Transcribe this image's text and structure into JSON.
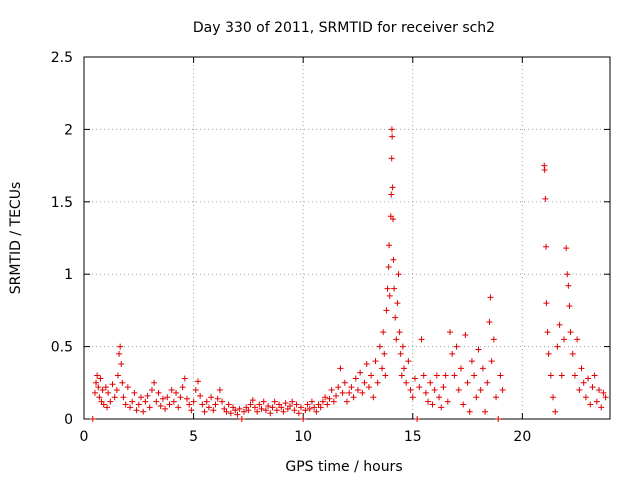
{
  "chart_data": {
    "type": "scatter",
    "title": "Day 330 of 2011, SRMTID for receiver sch2",
    "xlabel": "GPS time / hours",
    "ylabel": "SRMTID / TECUs",
    "xlim": [
      0,
      24
    ],
    "ylim": [
      0,
      2.5
    ],
    "xticks": [
      0,
      5,
      10,
      15,
      20
    ],
    "xtick_labels": [
      "0",
      "5",
      "10",
      "15",
      "20"
    ],
    "yticks": [
      0,
      0.5,
      1,
      1.5,
      2,
      2.5
    ],
    "ytick_labels": [
      "0",
      "0.5",
      "1",
      "1.5",
      "2",
      "2.5"
    ],
    "grid": true,
    "marker": "plus",
    "color": "#e00000",
    "series": [
      {
        "name": "sch2",
        "points": [
          [
            0.4,
            0.0
          ],
          [
            0.5,
            0.18
          ],
          [
            0.55,
            0.25
          ],
          [
            0.6,
            0.3
          ],
          [
            0.65,
            0.22
          ],
          [
            0.7,
            0.15
          ],
          [
            0.75,
            0.28
          ],
          [
            0.8,
            0.12
          ],
          [
            0.85,
            0.2
          ],
          [
            0.9,
            0.1
          ],
          [
            1.0,
            0.22
          ],
          [
            1.05,
            0.08
          ],
          [
            1.1,
            0.18
          ],
          [
            1.2,
            0.12
          ],
          [
            1.3,
            0.24
          ],
          [
            1.4,
            0.15
          ],
          [
            1.5,
            0.2
          ],
          [
            1.55,
            0.3
          ],
          [
            1.6,
            0.45
          ],
          [
            1.65,
            0.5
          ],
          [
            1.7,
            0.38
          ],
          [
            1.75,
            0.25
          ],
          [
            1.8,
            0.15
          ],
          [
            1.9,
            0.1
          ],
          [
            2.0,
            0.22
          ],
          [
            2.1,
            0.08
          ],
          [
            2.2,
            0.12
          ],
          [
            2.3,
            0.18
          ],
          [
            2.4,
            0.06
          ],
          [
            2.5,
            0.1
          ],
          [
            2.6,
            0.15
          ],
          [
            2.7,
            0.05
          ],
          [
            2.8,
            0.12
          ],
          [
            2.9,
            0.16
          ],
          [
            3.0,
            0.08
          ],
          [
            3.1,
            0.2
          ],
          [
            3.2,
            0.25
          ],
          [
            3.3,
            0.12
          ],
          [
            3.4,
            0.18
          ],
          [
            3.5,
            0.09
          ],
          [
            3.6,
            0.14
          ],
          [
            3.7,
            0.07
          ],
          [
            3.8,
            0.15
          ],
          [
            3.9,
            0.1
          ],
          [
            4.0,
            0.2
          ],
          [
            4.1,
            0.12
          ],
          [
            4.2,
            0.18
          ],
          [
            4.3,
            0.08
          ],
          [
            4.4,
            0.15
          ],
          [
            4.5,
            0.22
          ],
          [
            4.6,
            0.28
          ],
          [
            4.7,
            0.14
          ],
          [
            4.8,
            0.1
          ],
          [
            4.9,
            0.06
          ],
          [
            5.0,
            0.12
          ],
          [
            5.1,
            0.2
          ],
          [
            5.2,
            0.26
          ],
          [
            5.3,
            0.16
          ],
          [
            5.4,
            0.1
          ],
          [
            5.5,
            0.05
          ],
          [
            5.6,
            0.12
          ],
          [
            5.7,
            0.08
          ],
          [
            5.8,
            0.15
          ],
          [
            5.9,
            0.06
          ],
          [
            6.0,
            0.1
          ],
          [
            6.1,
            0.14
          ],
          [
            6.2,
            0.2
          ],
          [
            6.3,
            0.12
          ],
          [
            6.4,
            0.07
          ],
          [
            6.5,
            0.05
          ],
          [
            6.6,
            0.1
          ],
          [
            6.7,
            0.04
          ],
          [
            6.8,
            0.08
          ],
          [
            6.9,
            0.06
          ],
          [
            7.0,
            0.03
          ],
          [
            7.1,
            0.07
          ],
          [
            7.2,
            0.0
          ],
          [
            7.3,
            0.05
          ],
          [
            7.4,
            0.08
          ],
          [
            7.5,
            0.06
          ],
          [
            7.6,
            0.1
          ],
          [
            7.7,
            0.13
          ],
          [
            7.8,
            0.08
          ],
          [
            7.9,
            0.05
          ],
          [
            8.0,
            0.1
          ],
          [
            8.1,
            0.07
          ],
          [
            8.2,
            0.12
          ],
          [
            8.3,
            0.06
          ],
          [
            8.4,
            0.09
          ],
          [
            8.5,
            0.04
          ],
          [
            8.6,
            0.08
          ],
          [
            8.7,
            0.12
          ],
          [
            8.8,
            0.06
          ],
          [
            8.9,
            0.1
          ],
          [
            9.0,
            0.08
          ],
          [
            9.1,
            0.05
          ],
          [
            9.2,
            0.11
          ],
          [
            9.3,
            0.07
          ],
          [
            9.4,
            0.09
          ],
          [
            9.5,
            0.12
          ],
          [
            9.6,
            0.06
          ],
          [
            9.7,
            0.1
          ],
          [
            9.8,
            0.04
          ],
          [
            9.9,
            0.08
          ],
          [
            10.0,
            0.0
          ],
          [
            10.1,
            0.06
          ],
          [
            10.2,
            0.1
          ],
          [
            10.3,
            0.07
          ],
          [
            10.4,
            0.12
          ],
          [
            10.5,
            0.08
          ],
          [
            10.6,
            0.05
          ],
          [
            10.7,
            0.1
          ],
          [
            10.8,
            0.08
          ],
          [
            10.9,
            0.12
          ],
          [
            11.0,
            0.15
          ],
          [
            11.1,
            0.1
          ],
          [
            11.2,
            0.14
          ],
          [
            11.3,
            0.2
          ],
          [
            11.4,
            0.12
          ],
          [
            11.5,
            0.16
          ],
          [
            11.6,
            0.22
          ],
          [
            11.7,
            0.35
          ],
          [
            11.8,
            0.18
          ],
          [
            11.9,
            0.25
          ],
          [
            12.0,
            0.12
          ],
          [
            12.1,
            0.18
          ],
          [
            12.2,
            0.22
          ],
          [
            12.3,
            0.15
          ],
          [
            12.4,
            0.28
          ],
          [
            12.5,
            0.2
          ],
          [
            12.6,
            0.32
          ],
          [
            12.7,
            0.18
          ],
          [
            12.8,
            0.25
          ],
          [
            12.9,
            0.38
          ],
          [
            13.0,
            0.22
          ],
          [
            13.1,
            0.3
          ],
          [
            13.2,
            0.15
          ],
          [
            13.3,
            0.4
          ],
          [
            13.4,
            0.25
          ],
          [
            13.5,
            0.5
          ],
          [
            13.6,
            0.35
          ],
          [
            13.65,
            0.6
          ],
          [
            13.7,
            0.45
          ],
          [
            13.75,
            0.3
          ],
          [
            13.8,
            0.75
          ],
          [
            13.85,
            0.9
          ],
          [
            13.9,
            1.05
          ],
          [
            13.92,
            1.2
          ],
          [
            13.95,
            0.85
          ],
          [
            14.0,
            1.4
          ],
          [
            14.02,
            1.55
          ],
          [
            14.04,
            1.8
          ],
          [
            14.05,
            2.0
          ],
          [
            14.06,
            1.95
          ],
          [
            14.08,
            1.6
          ],
          [
            14.1,
            1.38
          ],
          [
            14.12,
            1.1
          ],
          [
            14.15,
            0.9
          ],
          [
            14.2,
            0.7
          ],
          [
            14.25,
            0.55
          ],
          [
            14.3,
            0.8
          ],
          [
            14.35,
            1.0
          ],
          [
            14.4,
            0.6
          ],
          [
            14.45,
            0.45
          ],
          [
            14.5,
            0.3
          ],
          [
            14.55,
            0.5
          ],
          [
            14.6,
            0.35
          ],
          [
            14.7,
            0.25
          ],
          [
            14.8,
            0.4
          ],
          [
            14.9,
            0.2
          ],
          [
            15.0,
            0.15
          ],
          [
            15.1,
            0.28
          ],
          [
            15.2,
            0.0
          ],
          [
            15.3,
            0.22
          ],
          [
            15.4,
            0.55
          ],
          [
            15.5,
            0.3
          ],
          [
            15.6,
            0.18
          ],
          [
            15.7,
            0.12
          ],
          [
            15.8,
            0.25
          ],
          [
            15.9,
            0.1
          ],
          [
            16.0,
            0.2
          ],
          [
            16.1,
            0.3
          ],
          [
            16.2,
            0.15
          ],
          [
            16.3,
            0.08
          ],
          [
            16.4,
            0.22
          ],
          [
            16.5,
            0.3
          ],
          [
            16.6,
            0.12
          ],
          [
            16.7,
            0.6
          ],
          [
            16.8,
            0.45
          ],
          [
            16.9,
            0.3
          ],
          [
            17.0,
            0.5
          ],
          [
            17.1,
            0.2
          ],
          [
            17.2,
            0.35
          ],
          [
            17.3,
            0.1
          ],
          [
            17.4,
            0.58
          ],
          [
            17.5,
            0.25
          ],
          [
            17.6,
            0.05
          ],
          [
            17.7,
            0.4
          ],
          [
            17.8,
            0.3
          ],
          [
            17.9,
            0.15
          ],
          [
            18.0,
            0.48
          ],
          [
            18.1,
            0.2
          ],
          [
            18.2,
            0.35
          ],
          [
            18.3,
            0.05
          ],
          [
            18.4,
            0.25
          ],
          [
            18.5,
            0.67
          ],
          [
            18.55,
            0.84
          ],
          [
            18.6,
            0.4
          ],
          [
            18.7,
            0.55
          ],
          [
            18.8,
            0.15
          ],
          [
            18.9,
            0.0
          ],
          [
            19.0,
            0.3
          ],
          [
            19.1,
            0.2
          ],
          [
            21.0,
            1.75
          ],
          [
            21.02,
            1.72
          ],
          [
            21.05,
            1.52
          ],
          [
            21.08,
            1.19
          ],
          [
            21.1,
            0.8
          ],
          [
            21.15,
            0.6
          ],
          [
            21.2,
            0.45
          ],
          [
            21.3,
            0.3
          ],
          [
            21.4,
            0.15
          ],
          [
            21.5,
            0.05
          ],
          [
            21.6,
            0.5
          ],
          [
            21.7,
            0.65
          ],
          [
            21.8,
            0.3
          ],
          [
            21.9,
            0.55
          ],
          [
            22.0,
            1.18
          ],
          [
            22.05,
            1.0
          ],
          [
            22.1,
            0.92
          ],
          [
            22.15,
            0.78
          ],
          [
            22.2,
            0.6
          ],
          [
            22.3,
            0.45
          ],
          [
            22.4,
            0.3
          ],
          [
            22.5,
            0.55
          ],
          [
            22.6,
            0.2
          ],
          [
            22.7,
            0.35
          ],
          [
            22.8,
            0.25
          ],
          [
            22.9,
            0.15
          ],
          [
            23.0,
            0.28
          ],
          [
            23.1,
            0.1
          ],
          [
            23.2,
            0.22
          ],
          [
            23.3,
            0.3
          ],
          [
            23.4,
            0.12
          ],
          [
            23.5,
            0.2
          ],
          [
            23.6,
            0.08
          ],
          [
            23.7,
            0.18
          ],
          [
            23.8,
            0.15
          ]
        ]
      }
    ]
  }
}
